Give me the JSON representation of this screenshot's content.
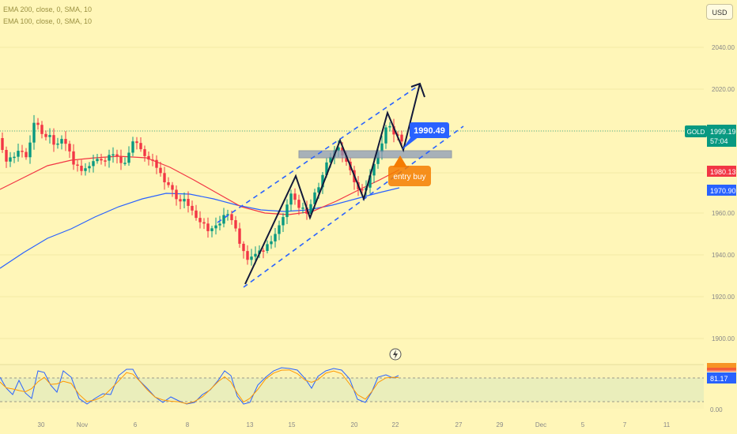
{
  "legends": [
    {
      "text": "EMA 200, close, 0, SMA, 10"
    },
    {
      "text": "EMA 100, close, 0, SMA, 10"
    }
  ],
  "currency_button": "USD",
  "price_axis": {
    "ticks": [
      "2040.00",
      "2020.00",
      "1960.00",
      "1940.00",
      "1920.00",
      "1900.00"
    ],
    "current_price_badge": {
      "symbol": "GOLD",
      "price": "1999.19",
      "countdown": "57:04",
      "color": "#089981"
    },
    "ema_red_badge": {
      "price": "1980.13",
      "color": "#f23645"
    },
    "ema_blue_badge": {
      "price": "1970.90",
      "color": "#2962ff"
    }
  },
  "oscillator_axis": {
    "ticks": [
      "0.00"
    ],
    "current_badge": {
      "value": "81.17",
      "color": "#2962ff"
    }
  },
  "time_axis": {
    "ticks": [
      "30",
      "Nov",
      "6",
      "8",
      "13",
      "15",
      "20",
      "22",
      "27",
      "29",
      "Dec",
      "5",
      "7",
      "11"
    ]
  },
  "annotations": {
    "price_label": {
      "text": "1990.49",
      "color": "#2962ff"
    },
    "entry_label": {
      "text": "entry buy",
      "color": "#f57c00"
    },
    "lightning_icon": "lightning-icon"
  },
  "colors": {
    "up_candle": "#089981",
    "down_candle": "#f23645",
    "ema_red": "#f23645",
    "ema_blue": "#2962ff",
    "channel": "#2962ff",
    "zigzag": "#131a3a",
    "zone": "#8a9ab8"
  }
}
